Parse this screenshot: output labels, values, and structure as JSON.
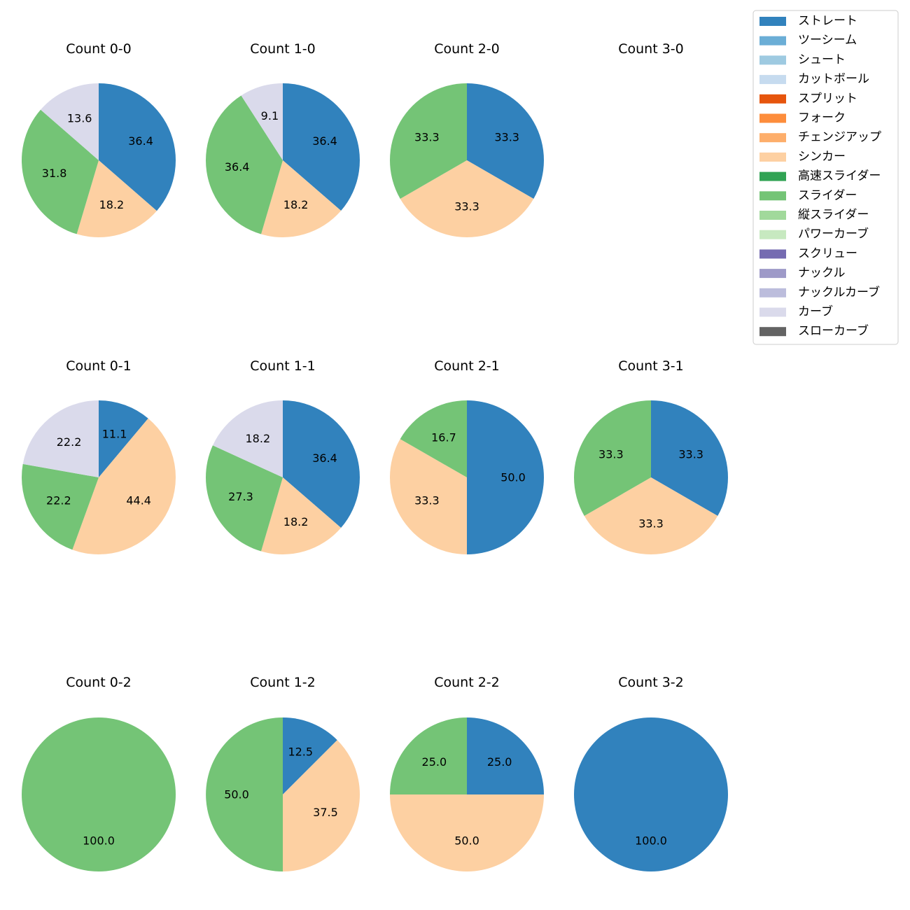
{
  "legend": {
    "placement": "top-right",
    "items": [
      {
        "name": "ストレート",
        "color": "#3182bd"
      },
      {
        "name": "ツーシーム",
        "color": "#6baed6"
      },
      {
        "name": "シュート",
        "color": "#9ecae1"
      },
      {
        "name": "カットボール",
        "color": "#c6dbef"
      },
      {
        "name": "スプリット",
        "color": "#e6550d"
      },
      {
        "name": "フォーク",
        "color": "#fd8d3c"
      },
      {
        "name": "チェンジアップ",
        "color": "#fdae6b"
      },
      {
        "name": "シンカー",
        "color": "#fdd0a2"
      },
      {
        "name": "高速スライダー",
        "color": "#31a354"
      },
      {
        "name": "スライダー",
        "color": "#74c476"
      },
      {
        "name": "縦スライダー",
        "color": "#a1d99b"
      },
      {
        "name": "パワーカーブ",
        "color": "#c7e9c0"
      },
      {
        "name": "スクリュー",
        "color": "#756bb1"
      },
      {
        "name": "ナックル",
        "color": "#9e9ac8"
      },
      {
        "name": "ナックルカーブ",
        "color": "#bcbddc"
      },
      {
        "name": "カーブ",
        "color": "#dadaeb"
      },
      {
        "name": "スローカーブ",
        "color": "#636363"
      }
    ]
  },
  "chart_data": [
    {
      "type": "pie",
      "title": "Count 0-0",
      "slices": [
        {
          "category": "ストレート",
          "value": 36.4
        },
        {
          "category": "シンカー",
          "value": 18.2
        },
        {
          "category": "スライダー",
          "value": 31.8
        },
        {
          "category": "カーブ",
          "value": 13.6
        }
      ]
    },
    {
      "type": "pie",
      "title": "Count 1-0",
      "slices": [
        {
          "category": "ストレート",
          "value": 36.4
        },
        {
          "category": "シンカー",
          "value": 18.2
        },
        {
          "category": "スライダー",
          "value": 36.4
        },
        {
          "category": "カーブ",
          "value": 9.1
        }
      ]
    },
    {
      "type": "pie",
      "title": "Count 2-0",
      "slices": [
        {
          "category": "ストレート",
          "value": 33.3
        },
        {
          "category": "シンカー",
          "value": 33.3
        },
        {
          "category": "スライダー",
          "value": 33.3
        }
      ]
    },
    {
      "type": "pie",
      "title": "Count 3-0",
      "slices": []
    },
    {
      "type": "pie",
      "title": "Count 0-1",
      "slices": [
        {
          "category": "ストレート",
          "value": 11.1
        },
        {
          "category": "シンカー",
          "value": 44.4
        },
        {
          "category": "スライダー",
          "value": 22.2
        },
        {
          "category": "カーブ",
          "value": 22.2
        }
      ]
    },
    {
      "type": "pie",
      "title": "Count 1-1",
      "slices": [
        {
          "category": "ストレート",
          "value": 36.4
        },
        {
          "category": "シンカー",
          "value": 18.2
        },
        {
          "category": "スライダー",
          "value": 27.3
        },
        {
          "category": "カーブ",
          "value": 18.2
        }
      ]
    },
    {
      "type": "pie",
      "title": "Count 2-1",
      "slices": [
        {
          "category": "ストレート",
          "value": 50.0
        },
        {
          "category": "シンカー",
          "value": 33.3
        },
        {
          "category": "スライダー",
          "value": 16.7
        }
      ]
    },
    {
      "type": "pie",
      "title": "Count 3-1",
      "slices": [
        {
          "category": "ストレート",
          "value": 33.3
        },
        {
          "category": "シンカー",
          "value": 33.3
        },
        {
          "category": "スライダー",
          "value": 33.3
        }
      ]
    },
    {
      "type": "pie",
      "title": "Count 0-2",
      "slices": [
        {
          "category": "スライダー",
          "value": 100.0
        }
      ]
    },
    {
      "type": "pie",
      "title": "Count 1-2",
      "slices": [
        {
          "category": "ストレート",
          "value": 12.5
        },
        {
          "category": "シンカー",
          "value": 37.5
        },
        {
          "category": "スライダー",
          "value": 50.0
        }
      ]
    },
    {
      "type": "pie",
      "title": "Count 2-2",
      "slices": [
        {
          "category": "ストレート",
          "value": 25.0
        },
        {
          "category": "シンカー",
          "value": 50.0
        },
        {
          "category": "スライダー",
          "value": 25.0
        }
      ]
    },
    {
      "type": "pie",
      "title": "Count 3-2",
      "slices": [
        {
          "category": "ストレート",
          "value": 100.0
        }
      ]
    }
  ]
}
